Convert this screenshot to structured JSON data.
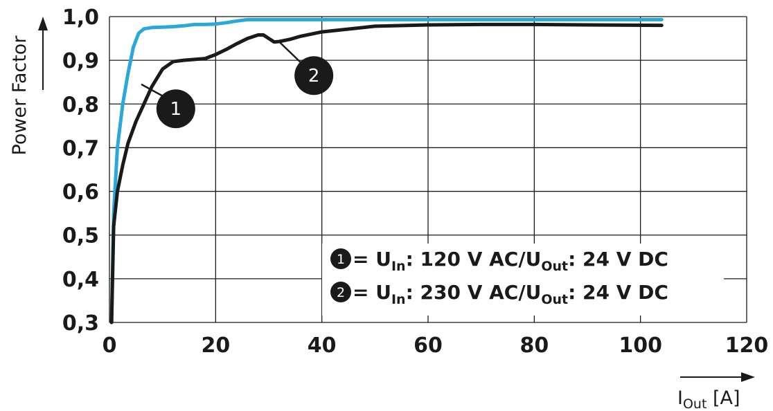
{
  "chart_data": {
    "type": "line",
    "ylabel": "Power Factor",
    "xlabel": {
      "main": "I",
      "sub": "Out",
      "unit": " [A]"
    },
    "xlim": [
      0,
      120
    ],
    "ylim": [
      0.3,
      1.0
    ],
    "x_ticks": [
      {
        "value": 0,
        "label": "0"
      },
      {
        "value": 20,
        "label": "20"
      },
      {
        "value": 40,
        "label": "40"
      },
      {
        "value": 60,
        "label": "60"
      },
      {
        "value": 80,
        "label": "80"
      },
      {
        "value": 100,
        "label": "100"
      },
      {
        "value": 120,
        "label": "120"
      }
    ],
    "y_ticks": [
      {
        "value": 0.3,
        "label": "0,3"
      },
      {
        "value": 0.4,
        "label": "0,4"
      },
      {
        "value": 0.5,
        "label": "0,5"
      },
      {
        "value": 0.6,
        "label": "0,6"
      },
      {
        "value": 0.7,
        "label": "0,7"
      },
      {
        "value": 0.8,
        "label": "0,8"
      },
      {
        "value": 0.9,
        "label": "0,9"
      },
      {
        "value": 1.0,
        "label": "1,0"
      }
    ],
    "grid": true,
    "series": [
      {
        "marker": "1",
        "color": "#2aa8dc",
        "x": [
          0.4,
          0.8,
          1.5,
          2.5,
          3.5,
          4.5,
          5.5,
          6.5,
          8,
          10,
          12,
          14,
          16,
          18,
          20,
          22,
          24,
          26,
          30,
          40,
          60,
          80,
          104
        ],
        "y": [
          0.3,
          0.55,
          0.7,
          0.8,
          0.87,
          0.93,
          0.962,
          0.972,
          0.975,
          0.976,
          0.977,
          0.979,
          0.982,
          0.982,
          0.983,
          0.986,
          0.99,
          0.993,
          0.993,
          0.993,
          0.993,
          0.993,
          0.993
        ]
      },
      {
        "marker": "2",
        "color": "#1a1a1a",
        "x": [
          0.4,
          0.8,
          1.5,
          2.5,
          3.5,
          5,
          6.5,
          8,
          10,
          12,
          14,
          16,
          18,
          20,
          22,
          24,
          26,
          28,
          29,
          30,
          31,
          32,
          34,
          36,
          40,
          50,
          60,
          70,
          80,
          90,
          104
        ],
        "y": [
          0.3,
          0.52,
          0.6,
          0.66,
          0.71,
          0.76,
          0.8,
          0.84,
          0.88,
          0.897,
          0.9,
          0.902,
          0.904,
          0.913,
          0.925,
          0.938,
          0.95,
          0.958,
          0.958,
          0.95,
          0.942,
          0.943,
          0.948,
          0.955,
          0.965,
          0.978,
          0.981,
          0.982,
          0.982,
          0.981,
          0.98
        ]
      }
    ],
    "callouts": [
      {
        "label": "1",
        "point": [
          6,
          0.845
        ],
        "bubble": [
          12.5,
          0.789
        ]
      },
      {
        "label": "2",
        "point": [
          32,
          0.942
        ],
        "bubble": [
          38.5,
          0.865
        ]
      }
    ],
    "legend": {
      "placement": "bottom-right",
      "entries": [
        {
          "marker": "1",
          "prefix": " = U",
          "sub1": "In",
          "mid": ": 120 V AC/U",
          "sub2": "Out",
          "suffix": ": 24 V DC"
        },
        {
          "marker": "2",
          "prefix": " = U",
          "sub1": "In",
          "mid": ": 230 V AC/U",
          "sub2": "Out",
          "suffix": ": 24 V DC"
        }
      ]
    }
  }
}
